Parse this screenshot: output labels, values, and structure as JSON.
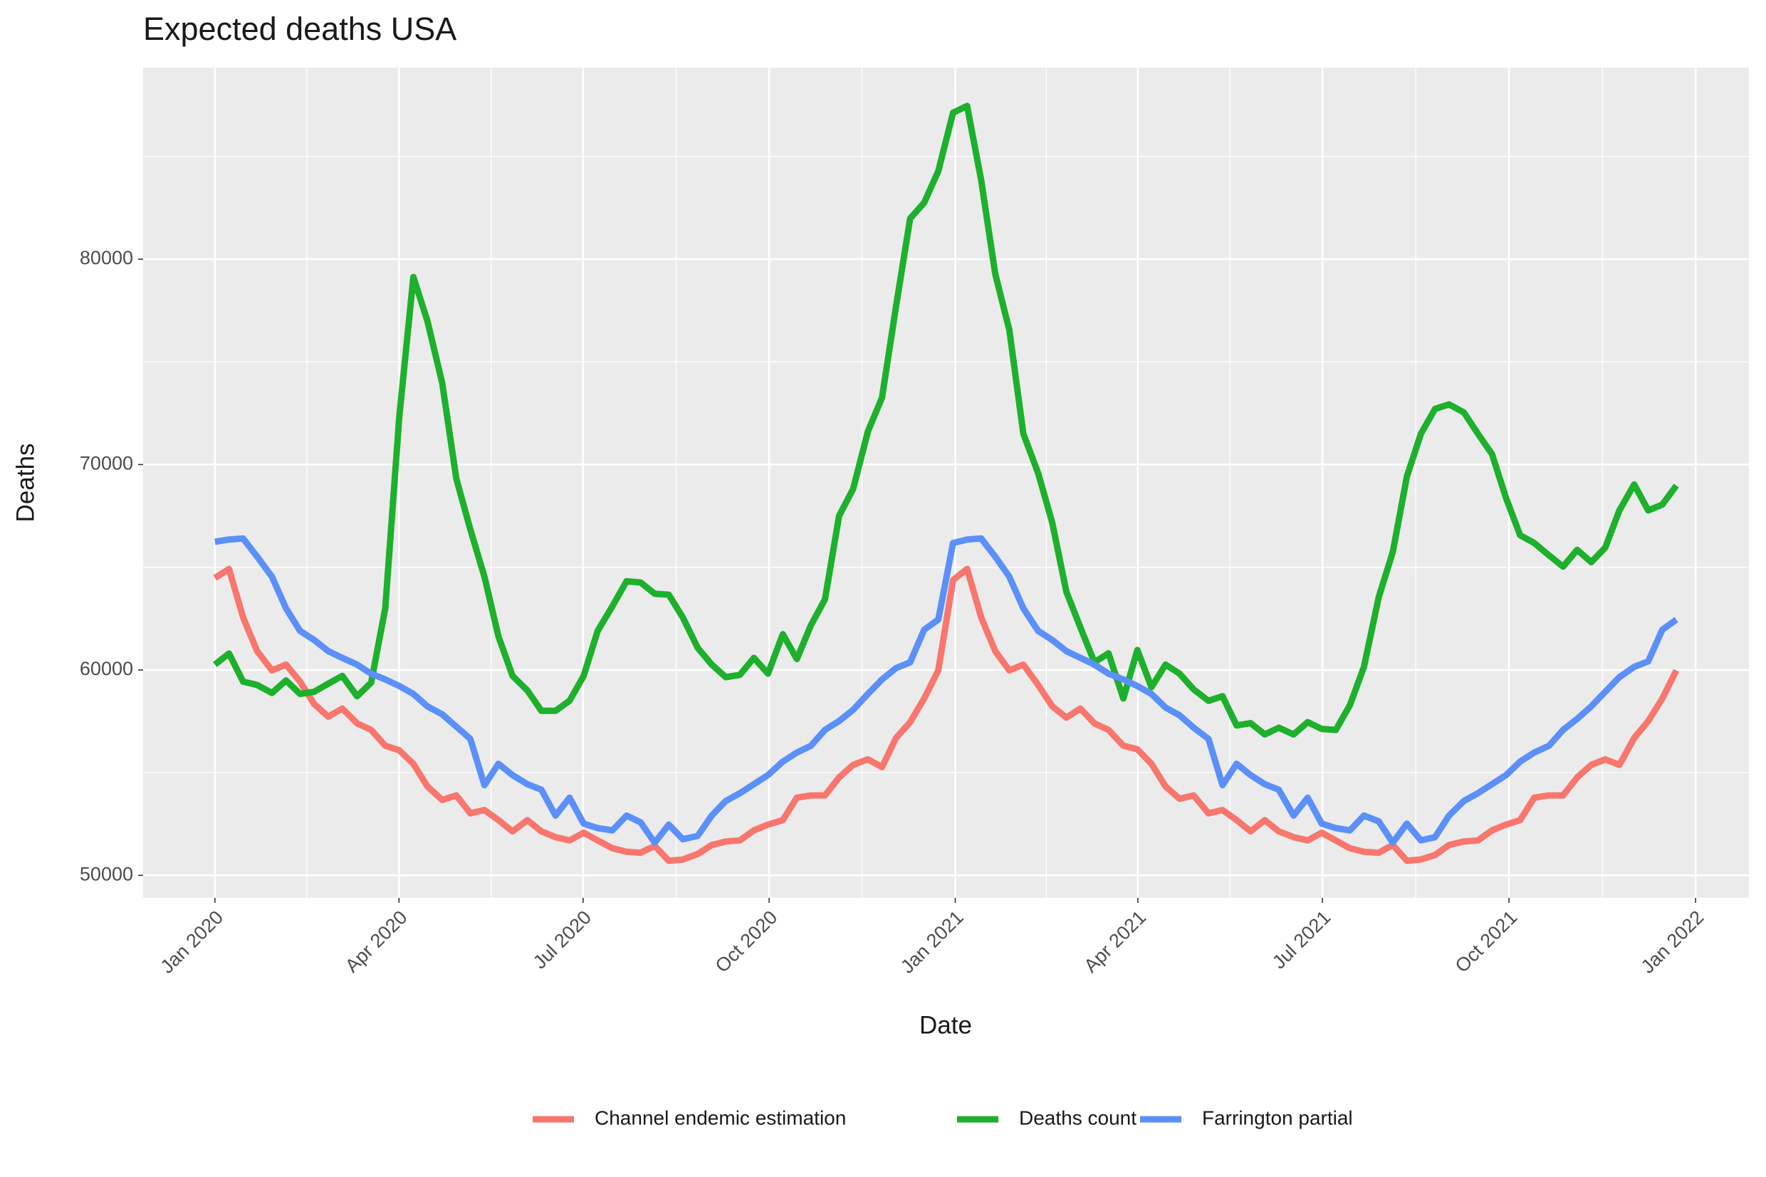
{
  "chart_data": {
    "type": "line",
    "title": "Expected deaths USA",
    "x_label": "Date",
    "y_label": "Deaths",
    "x": [
      2020.0,
      2020.019,
      2020.038,
      2020.057,
      2020.077,
      2020.096,
      2020.115,
      2020.134,
      2020.153,
      2020.172,
      2020.192,
      2020.211,
      2020.23,
      2020.249,
      2020.268,
      2020.287,
      2020.307,
      2020.326,
      2020.345,
      2020.364,
      2020.383,
      2020.402,
      2020.422,
      2020.441,
      2020.46,
      2020.479,
      2020.498,
      2020.517,
      2020.537,
      2020.556,
      2020.575,
      2020.594,
      2020.613,
      2020.632,
      2020.652,
      2020.671,
      2020.69,
      2020.709,
      2020.728,
      2020.747,
      2020.767,
      2020.786,
      2020.805,
      2020.824,
      2020.843,
      2020.862,
      2020.882,
      2020.901,
      2020.92,
      2020.939,
      2020.958,
      2020.977,
      2020.997,
      2021.016,
      2021.035,
      2021.054,
      2021.073,
      2021.092,
      2021.112,
      2021.131,
      2021.15,
      2021.169,
      2021.188,
      2021.207,
      2021.227,
      2021.246,
      2021.265,
      2021.284,
      2021.303,
      2021.322,
      2021.342,
      2021.361,
      2021.38,
      2021.399,
      2021.418,
      2021.437,
      2021.457,
      2021.476,
      2021.495,
      2021.514,
      2021.533,
      2021.552,
      2021.572,
      2021.591,
      2021.61,
      2021.629,
      2021.648,
      2021.667,
      2021.687,
      2021.706,
      2021.725,
      2021.744,
      2021.763,
      2021.782,
      2021.802,
      2021.821,
      2021.84,
      2021.859,
      2021.878,
      2021.897,
      2021.917,
      2021.936,
      2021.955,
      2021.974
    ],
    "series": [
      {
        "name": "Channel endemic estimation",
        "color": "#F8766D",
        "values": [
          64480,
          64920,
          62560,
          60920,
          59980,
          60260,
          59430,
          58340,
          57730,
          58120,
          57400,
          57080,
          56310,
          56090,
          55430,
          54330,
          53670,
          53890,
          53020,
          53180,
          52690,
          52140,
          52690,
          52140,
          51860,
          51700,
          52080,
          51700,
          51320,
          51150,
          51100,
          51430,
          50710,
          50770,
          51040,
          51480,
          51650,
          51700,
          52190,
          52470,
          52690,
          53780,
          53890,
          53890,
          54770,
          55380,
          55650,
          55270,
          56690,
          57460,
          58610,
          59980,
          64370,
          64920,
          62560,
          60920,
          59980,
          60260,
          59270,
          58230,
          57680,
          58120,
          57400,
          57080,
          56310,
          56140,
          55430,
          54330,
          53730,
          53890,
          53020,
          53180,
          52690,
          52140,
          52690,
          52140,
          51860,
          51700,
          52080,
          51700,
          51320,
          51150,
          51100,
          51480,
          50710,
          50770,
          50990,
          51480,
          51650,
          51700,
          52190,
          52470,
          52690,
          53780,
          53890,
          53890,
          54770,
          55380,
          55650,
          55380,
          56690,
          57510,
          58610,
          59980
        ]
      },
      {
        "name": "Deaths count",
        "color": "#1DB02C",
        "values": [
          60260,
          60800,
          59430,
          59270,
          58880,
          59490,
          58830,
          58940,
          59330,
          59710,
          58720,
          59380,
          63000,
          72320,
          79130,
          76990,
          73970,
          69310,
          66840,
          64540,
          61630,
          59710,
          59000,
          58010,
          58010,
          58500,
          59710,
          61900,
          63110,
          64320,
          64260,
          63710,
          63660,
          62560,
          61080,
          60260,
          59650,
          59760,
          60590,
          59820,
          61740,
          60530,
          62180,
          63440,
          67500,
          68810,
          71610,
          73260,
          77700,
          81980,
          82750,
          84280,
          87130,
          87460,
          83840,
          79290,
          76550,
          71500,
          69580,
          67170,
          63820,
          62070,
          60370,
          60810,
          58610,
          60970,
          59160,
          60260,
          59820,
          59050,
          58500,
          58720,
          57300,
          57410,
          56860,
          57190,
          56860,
          57460,
          57130,
          57080,
          58280,
          60150,
          63550,
          65740,
          69420,
          71500,
          72710,
          72930,
          72540,
          71500,
          70510,
          68370,
          66560,
          66180,
          65580,
          65030,
          65850,
          65250,
          65960,
          67770,
          69030,
          67770,
          68050,
          68980
        ]
      },
      {
        "name": "Farrington partial",
        "color": "#5B8FF9",
        "values": [
          66240,
          66350,
          66400,
          65520,
          64540,
          63000,
          61900,
          61460,
          60920,
          60590,
          60260,
          59820,
          59540,
          59220,
          58830,
          58230,
          57840,
          57240,
          56640,
          54390,
          55430,
          54880,
          54440,
          54170,
          52910,
          53780,
          52520,
          52300,
          52190,
          52910,
          52580,
          51590,
          52470,
          51760,
          51920,
          52910,
          53620,
          54000,
          54440,
          54880,
          55540,
          55980,
          56310,
          57080,
          57510,
          58060,
          58830,
          59540,
          60090,
          60370,
          61960,
          62450,
          66180,
          66350,
          66400,
          65520,
          64540,
          63000,
          61900,
          61460,
          60920,
          60590,
          60260,
          59820,
          59540,
          59220,
          58830,
          58170,
          57790,
          57190,
          56640,
          54390,
          55430,
          54880,
          54440,
          54170,
          52910,
          53780,
          52520,
          52300,
          52190,
          52910,
          52630,
          51590,
          52520,
          51700,
          51860,
          52910,
          53620,
          54000,
          54440,
          54880,
          55540,
          55980,
          56310,
          57080,
          57620,
          58230,
          58940,
          59650,
          60150,
          60420,
          61960,
          62450
        ]
      }
    ],
    "xlim": [
      2019.903,
      2022.072
    ],
    "ylim": [
      48903,
      89325
    ],
    "xticks": [
      {
        "value": 2020,
        "label": "Jan 2020"
      },
      {
        "value": 2020.2486,
        "label": "Apr 2020"
      },
      {
        "value": 2020.4973,
        "label": "Jul 2020"
      },
      {
        "value": 2020.7486,
        "label": "Oct 2020"
      },
      {
        "value": 2021,
        "label": "Jan 2021"
      },
      {
        "value": 2021.2466,
        "label": "Apr 2021"
      },
      {
        "value": 2021.4959,
        "label": "Jul 2021"
      },
      {
        "value": 2021.7479,
        "label": "Oct 2021"
      },
      {
        "value": 2022,
        "label": "Jan 2022"
      }
    ],
    "yticks": [
      50000,
      60000,
      70000,
      80000
    ],
    "x_minor_ticks": [
      2020.124,
      2020.373,
      2020.623,
      2020.874,
      2021.123,
      2021.371,
      2021.622,
      2021.874
    ],
    "y_minor_ticks": [
      55000,
      65000,
      75000,
      85000
    ],
    "grid": true,
    "legend": "bottom"
  }
}
